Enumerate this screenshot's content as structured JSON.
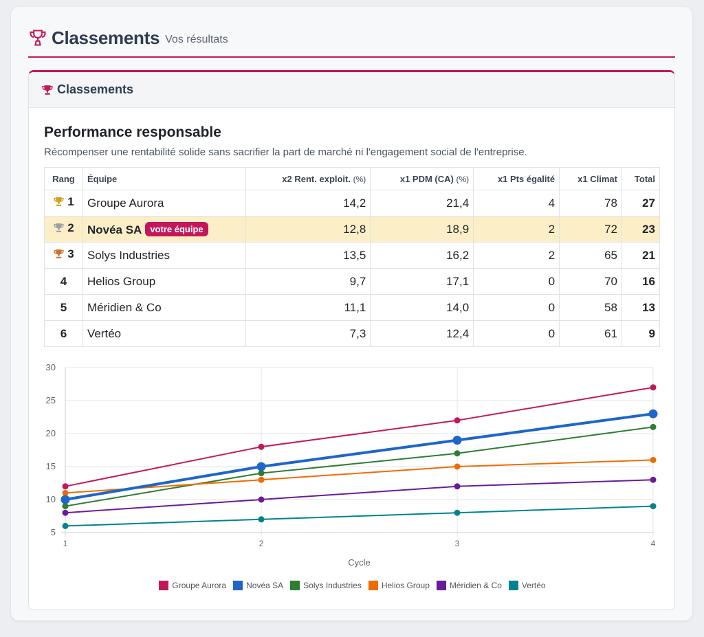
{
  "page": {
    "title": "Classements",
    "subtitle": "Vos résultats"
  },
  "card": {
    "title": "Classements",
    "section_title": "Performance responsable",
    "section_desc": "Récompenser une rentabilité solide sans sacrifier la part de marché ni l'engagement social de l'entreprise."
  },
  "table": {
    "headers": {
      "rank": "Rang",
      "team": "Équipe",
      "rent_main": "x2 Rent. exploit.",
      "rent_unit": "(%)",
      "pdm_main": "x1 PDM (CA)",
      "pdm_unit": "(%)",
      "egal": "x1 Pts égalité",
      "climat": "x1 Climat",
      "total": "Total"
    },
    "badge": "votre équipe",
    "rows": [
      {
        "rank": "1",
        "medal": "gold-trophy-icon",
        "team": "Groupe Aurora",
        "rent": "14,2",
        "pdm": "21,4",
        "egal": "4",
        "climat": "78",
        "total": "27"
      },
      {
        "rank": "2",
        "medal": "silver-trophy-icon",
        "team": "Novéa SA",
        "rent": "12,8",
        "pdm": "18,9",
        "egal": "2",
        "climat": "72",
        "total": "23"
      },
      {
        "rank": "3",
        "medal": "bronze-trophy-icon",
        "team": "Solys Industries",
        "rent": "13,5",
        "pdm": "16,2",
        "egal": "2",
        "climat": "65",
        "total": "21"
      },
      {
        "rank": "4",
        "team": "Helios Group",
        "rent": "9,7",
        "pdm": "17,1",
        "egal": "0",
        "climat": "70",
        "total": "16"
      },
      {
        "rank": "5",
        "team": "Méridien & Co",
        "rent": "11,1",
        "pdm": "14,0",
        "egal": "0",
        "climat": "58",
        "total": "13"
      },
      {
        "rank": "6",
        "team": "Vertéo",
        "rent": "7,3",
        "pdm": "12,4",
        "egal": "0",
        "climat": "61",
        "total": "9"
      }
    ]
  },
  "colors": {
    "accent": "#c2185b",
    "highlight_row": "#fcefc8",
    "gold": "#d4a017",
    "silver": "#9aa0a6",
    "bronze": "#c87533"
  },
  "chart_data": {
    "type": "line",
    "xlabel": "Cycle",
    "ylabel": "",
    "x": [
      1,
      2,
      3,
      4
    ],
    "ylim": [
      5,
      30
    ],
    "yticks": [
      5,
      10,
      15,
      20,
      25,
      30
    ],
    "grid": true,
    "legend": "bottom",
    "series": [
      {
        "name": "Groupe Aurora",
        "color": "#c2185b",
        "values": [
          12,
          18,
          22,
          27
        ]
      },
      {
        "name": "Novéa SA",
        "color": "#1e66c8",
        "values": [
          10,
          15,
          19,
          23
        ],
        "emphasis": true
      },
      {
        "name": "Solys Industries",
        "color": "#2e7d32",
        "values": [
          9,
          14,
          17,
          21
        ]
      },
      {
        "name": "Helios Group",
        "color": "#ef6c00",
        "values": [
          11,
          13,
          15,
          16
        ]
      },
      {
        "name": "Méridien & Co",
        "color": "#6a1b9a",
        "values": [
          8,
          10,
          12,
          13
        ]
      },
      {
        "name": "Vertéo",
        "color": "#00838f",
        "values": [
          6,
          7,
          8,
          9
        ]
      }
    ]
  }
}
